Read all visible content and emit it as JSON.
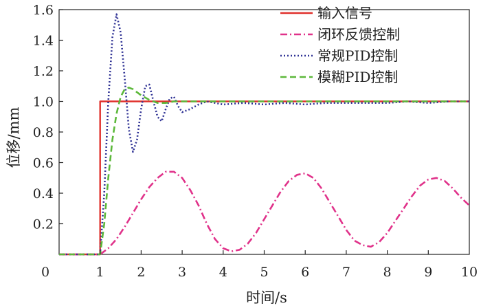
{
  "chart_data": {
    "type": "line",
    "xlabel": "时间/s",
    "ylabel": "位移/mm",
    "xlim": [
      0,
      10
    ],
    "ylim": [
      0,
      1.6
    ],
    "x_ticks": [
      "0",
      "1",
      "2",
      "3",
      "4",
      "5",
      "6",
      "7",
      "8",
      "9",
      "10"
    ],
    "y_ticks": [
      "0.2",
      "0.4",
      "0.6",
      "0.8",
      "1.0",
      "1.2",
      "1.4",
      "1.6"
    ],
    "grid": false,
    "legend_position": "top-right",
    "series": [
      {
        "name": "输入信号",
        "color": "#e0302b",
        "style": "solid",
        "x": [
          0,
          1.0,
          1.0,
          10
        ],
        "y": [
          0,
          0,
          1.0,
          1.0
        ]
      },
      {
        "name": "闭环反馈控制",
        "color": "#e0328a",
        "style": "dashdot",
        "x": [
          0,
          1.0,
          1.2,
          1.4,
          1.6,
          1.8,
          2.0,
          2.2,
          2.4,
          2.6,
          2.8,
          3.0,
          3.2,
          3.4,
          3.6,
          3.8,
          4.0,
          4.2,
          4.4,
          4.6,
          4.8,
          5.0,
          5.2,
          5.4,
          5.6,
          5.8,
          6.0,
          6.2,
          6.4,
          6.6,
          6.8,
          7.0,
          7.2,
          7.4,
          7.6,
          7.8,
          8.0,
          8.2,
          8.4,
          8.6,
          8.8,
          9.0,
          9.2,
          9.4,
          9.6,
          9.8,
          10.0
        ],
        "y": [
          0,
          0,
          0.04,
          0.1,
          0.18,
          0.27,
          0.36,
          0.44,
          0.5,
          0.54,
          0.54,
          0.5,
          0.42,
          0.32,
          0.2,
          0.1,
          0.04,
          0.02,
          0.03,
          0.07,
          0.14,
          0.23,
          0.32,
          0.41,
          0.48,
          0.52,
          0.53,
          0.5,
          0.43,
          0.34,
          0.25,
          0.16,
          0.09,
          0.06,
          0.05,
          0.08,
          0.14,
          0.22,
          0.3,
          0.38,
          0.45,
          0.49,
          0.5,
          0.48,
          0.43,
          0.37,
          0.32
        ]
      },
      {
        "name": "常规PID控制",
        "color": "#2e3194",
        "style": "dotted",
        "x": [
          0,
          1.0,
          1.1,
          1.2,
          1.3,
          1.4,
          1.5,
          1.6,
          1.7,
          1.8,
          1.9,
          2.0,
          2.1,
          2.2,
          2.3,
          2.4,
          2.5,
          2.6,
          2.7,
          2.8,
          2.9,
          3.0,
          3.2,
          3.4,
          3.6,
          3.8,
          4.0,
          4.5,
          5.0,
          5.5,
          6.0,
          6.5,
          7.0,
          7.5,
          8.0,
          8.5,
          9.0,
          9.5,
          10.0
        ],
        "y": [
          0,
          0,
          0.4,
          1.0,
          1.42,
          1.57,
          1.45,
          1.15,
          0.82,
          0.67,
          0.75,
          0.95,
          1.1,
          1.11,
          1.0,
          0.9,
          0.87,
          0.95,
          1.02,
          1.03,
          0.97,
          0.93,
          0.95,
          0.98,
          1.0,
          0.99,
          0.98,
          0.99,
          0.98,
          0.99,
          0.98,
          0.99,
          0.99,
          0.99,
          0.99,
          1.0,
          0.99,
          1.0,
          1.0
        ]
      },
      {
        "name": "模糊PID控制",
        "color": "#5cb83a",
        "style": "dashed",
        "x": [
          0,
          1.0,
          1.1,
          1.2,
          1.3,
          1.4,
          1.5,
          1.6,
          1.7,
          1.8,
          1.9,
          2.0,
          2.2,
          2.4,
          2.6,
          2.8,
          3.0,
          3.5,
          4.0,
          4.5,
          5.0,
          5.5,
          6.0,
          6.5,
          7.0,
          7.5,
          8.0,
          8.5,
          9.0,
          9.5,
          10.0
        ],
        "y": [
          0,
          0,
          0.2,
          0.5,
          0.75,
          0.92,
          1.03,
          1.08,
          1.09,
          1.08,
          1.06,
          1.04,
          1.01,
          0.99,
          0.99,
          1.0,
          1.0,
          1.0,
          1.0,
          1.0,
          1.0,
          1.0,
          1.0,
          1.0,
          1.0,
          1.0,
          1.0,
          1.0,
          1.0,
          1.0,
          1.0
        ]
      }
    ]
  }
}
